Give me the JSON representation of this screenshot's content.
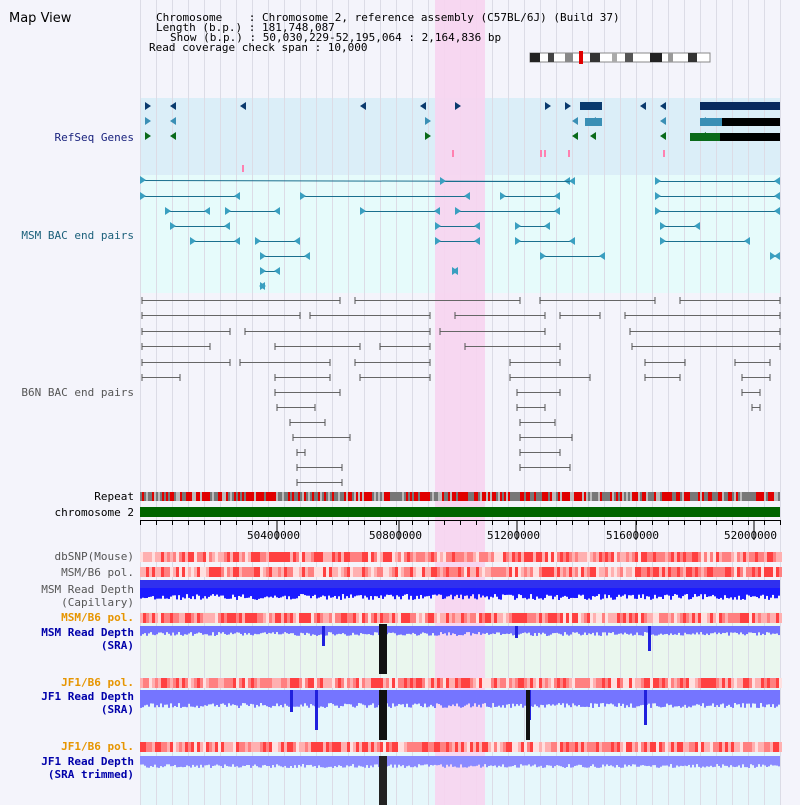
{
  "view_title": "Map View",
  "info": {
    "line1": "Chromosome    : Chromosome 2, reference assembly (C57BL/6J) (Build 37)",
    "line2": "Length (b.p.) : 181,748,087",
    "line3": "Show (b.p.) : 50,030,229-52,195,064 : 2,164,836 bp",
    "line4": "Read coverage check span : 10,000"
  },
  "tracks": {
    "refseq": "RefSeq Genes",
    "msm_bac": "MSM BAC end pairs",
    "b6n_bac": "B6N BAC end pairs",
    "repeat": "Repeat",
    "chromosome": "chromosome 2",
    "dbsnp": "dbSNP(Mouse)",
    "msm_b6_pol_1": "MSM/B6 pol.",
    "msm_depth_cap_1": "MSM Read Depth",
    "msm_depth_cap_2": "(Capillary)",
    "msm_b6_pol_2": "MSM/B6 pol.",
    "msm_depth_sra_1": "MSM Read Depth",
    "msm_depth_sra_2": "(SRA)",
    "jf1_b6_pol_1": "JF1/B6 pol.",
    "jf1_depth_sra_1": "JF1 Read Depth",
    "jf1_depth_sra_2": "(SRA)",
    "jf1_b6_pol_2": "JF1/B6 pol.",
    "jf1_depth_trim_1": "JF1 Read Depth",
    "jf1_depth_trim_2": "(SRA trimmed)"
  },
  "ruler": {
    "labels": [
      "50400000",
      "50800000",
      "51200000",
      "51600000",
      "52000000"
    ]
  },
  "colors": {
    "refseq_label": "#1a237e",
    "msm_bac_label": "#1a5f7a",
    "b6n_bac_label": "#555555",
    "pol_label": "#e69500",
    "sra_label": "#0000aa",
    "highlight": "#f7d4f0",
    "chromosome_bar": "#006400"
  }
}
